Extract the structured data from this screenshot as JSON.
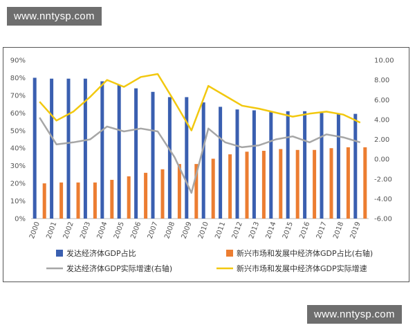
{
  "watermarks": {
    "top": "www.nntysp.com",
    "bottom": "www.nntysp.com"
  },
  "chart_data": {
    "type": "bar",
    "categories": [
      "2000",
      "2001",
      "2002",
      "2003",
      "2004",
      "2005",
      "2006",
      "2007",
      "2008",
      "2009",
      "2010",
      "2011",
      "2012",
      "2013",
      "2014",
      "2015",
      "2016",
      "2017",
      "2018",
      "2019"
    ],
    "left_axis": {
      "ylim": [
        0,
        90
      ],
      "ticks": [
        "0%",
        "10%",
        "20%",
        "30%",
        "40%",
        "50%",
        "60%",
        "70%",
        "80%",
        "90%"
      ]
    },
    "right_axis": {
      "ylim": [
        -6,
        10
      ],
      "ticks": [
        "-6.00",
        "-4.00",
        "-2.00",
        "0.00",
        "2.00",
        "4.00",
        "6.00",
        "8.00",
        "10.00"
      ]
    },
    "grid": false,
    "legend_position": "bottom",
    "series": [
      {
        "name": "发达经济体GDP占比",
        "type": "bar",
        "axis": "left",
        "color": "#3a5fb0",
        "values": [
          80,
          79.5,
          79.5,
          79.5,
          78,
          76,
          74,
          72,
          69,
          69,
          66,
          63.5,
          62,
          61.5,
          60.5,
          61,
          61,
          60,
          59.5,
          59.5
        ]
      },
      {
        "name": "新兴市场和发展中经济体GDP占比(右轴)",
        "type": "bar",
        "axis": "left",
        "color": "#ec7d31",
        "values": [
          20,
          20.5,
          20.5,
          20.5,
          22,
          24,
          26,
          28,
          31,
          31,
          34,
          36.5,
          38,
          38.5,
          39.5,
          39,
          39,
          40,
          40.5,
          40.5
        ]
      },
      {
        "name": "发达经济体GDP实际增速(右轴)",
        "type": "line",
        "axis": "right",
        "color": "#a6a6a6",
        "values": [
          4.2,
          1.5,
          1.7,
          2.0,
          3.3,
          2.8,
          3.1,
          2.8,
          0.2,
          -3.4,
          3.1,
          1.7,
          1.2,
          1.4,
          2.0,
          2.3,
          1.7,
          2.5,
          2.2,
          1.7
        ]
      },
      {
        "name": "新兴市场和发展中经济体GDP实际增速",
        "type": "line",
        "axis": "right",
        "color": "#f2c80f",
        "values": [
          5.8,
          3.9,
          4.8,
          6.3,
          8.0,
          7.3,
          8.3,
          8.6,
          5.8,
          2.9,
          7.4,
          6.4,
          5.4,
          5.1,
          4.7,
          4.3,
          4.6,
          4.8,
          4.5,
          3.7
        ]
      }
    ]
  }
}
